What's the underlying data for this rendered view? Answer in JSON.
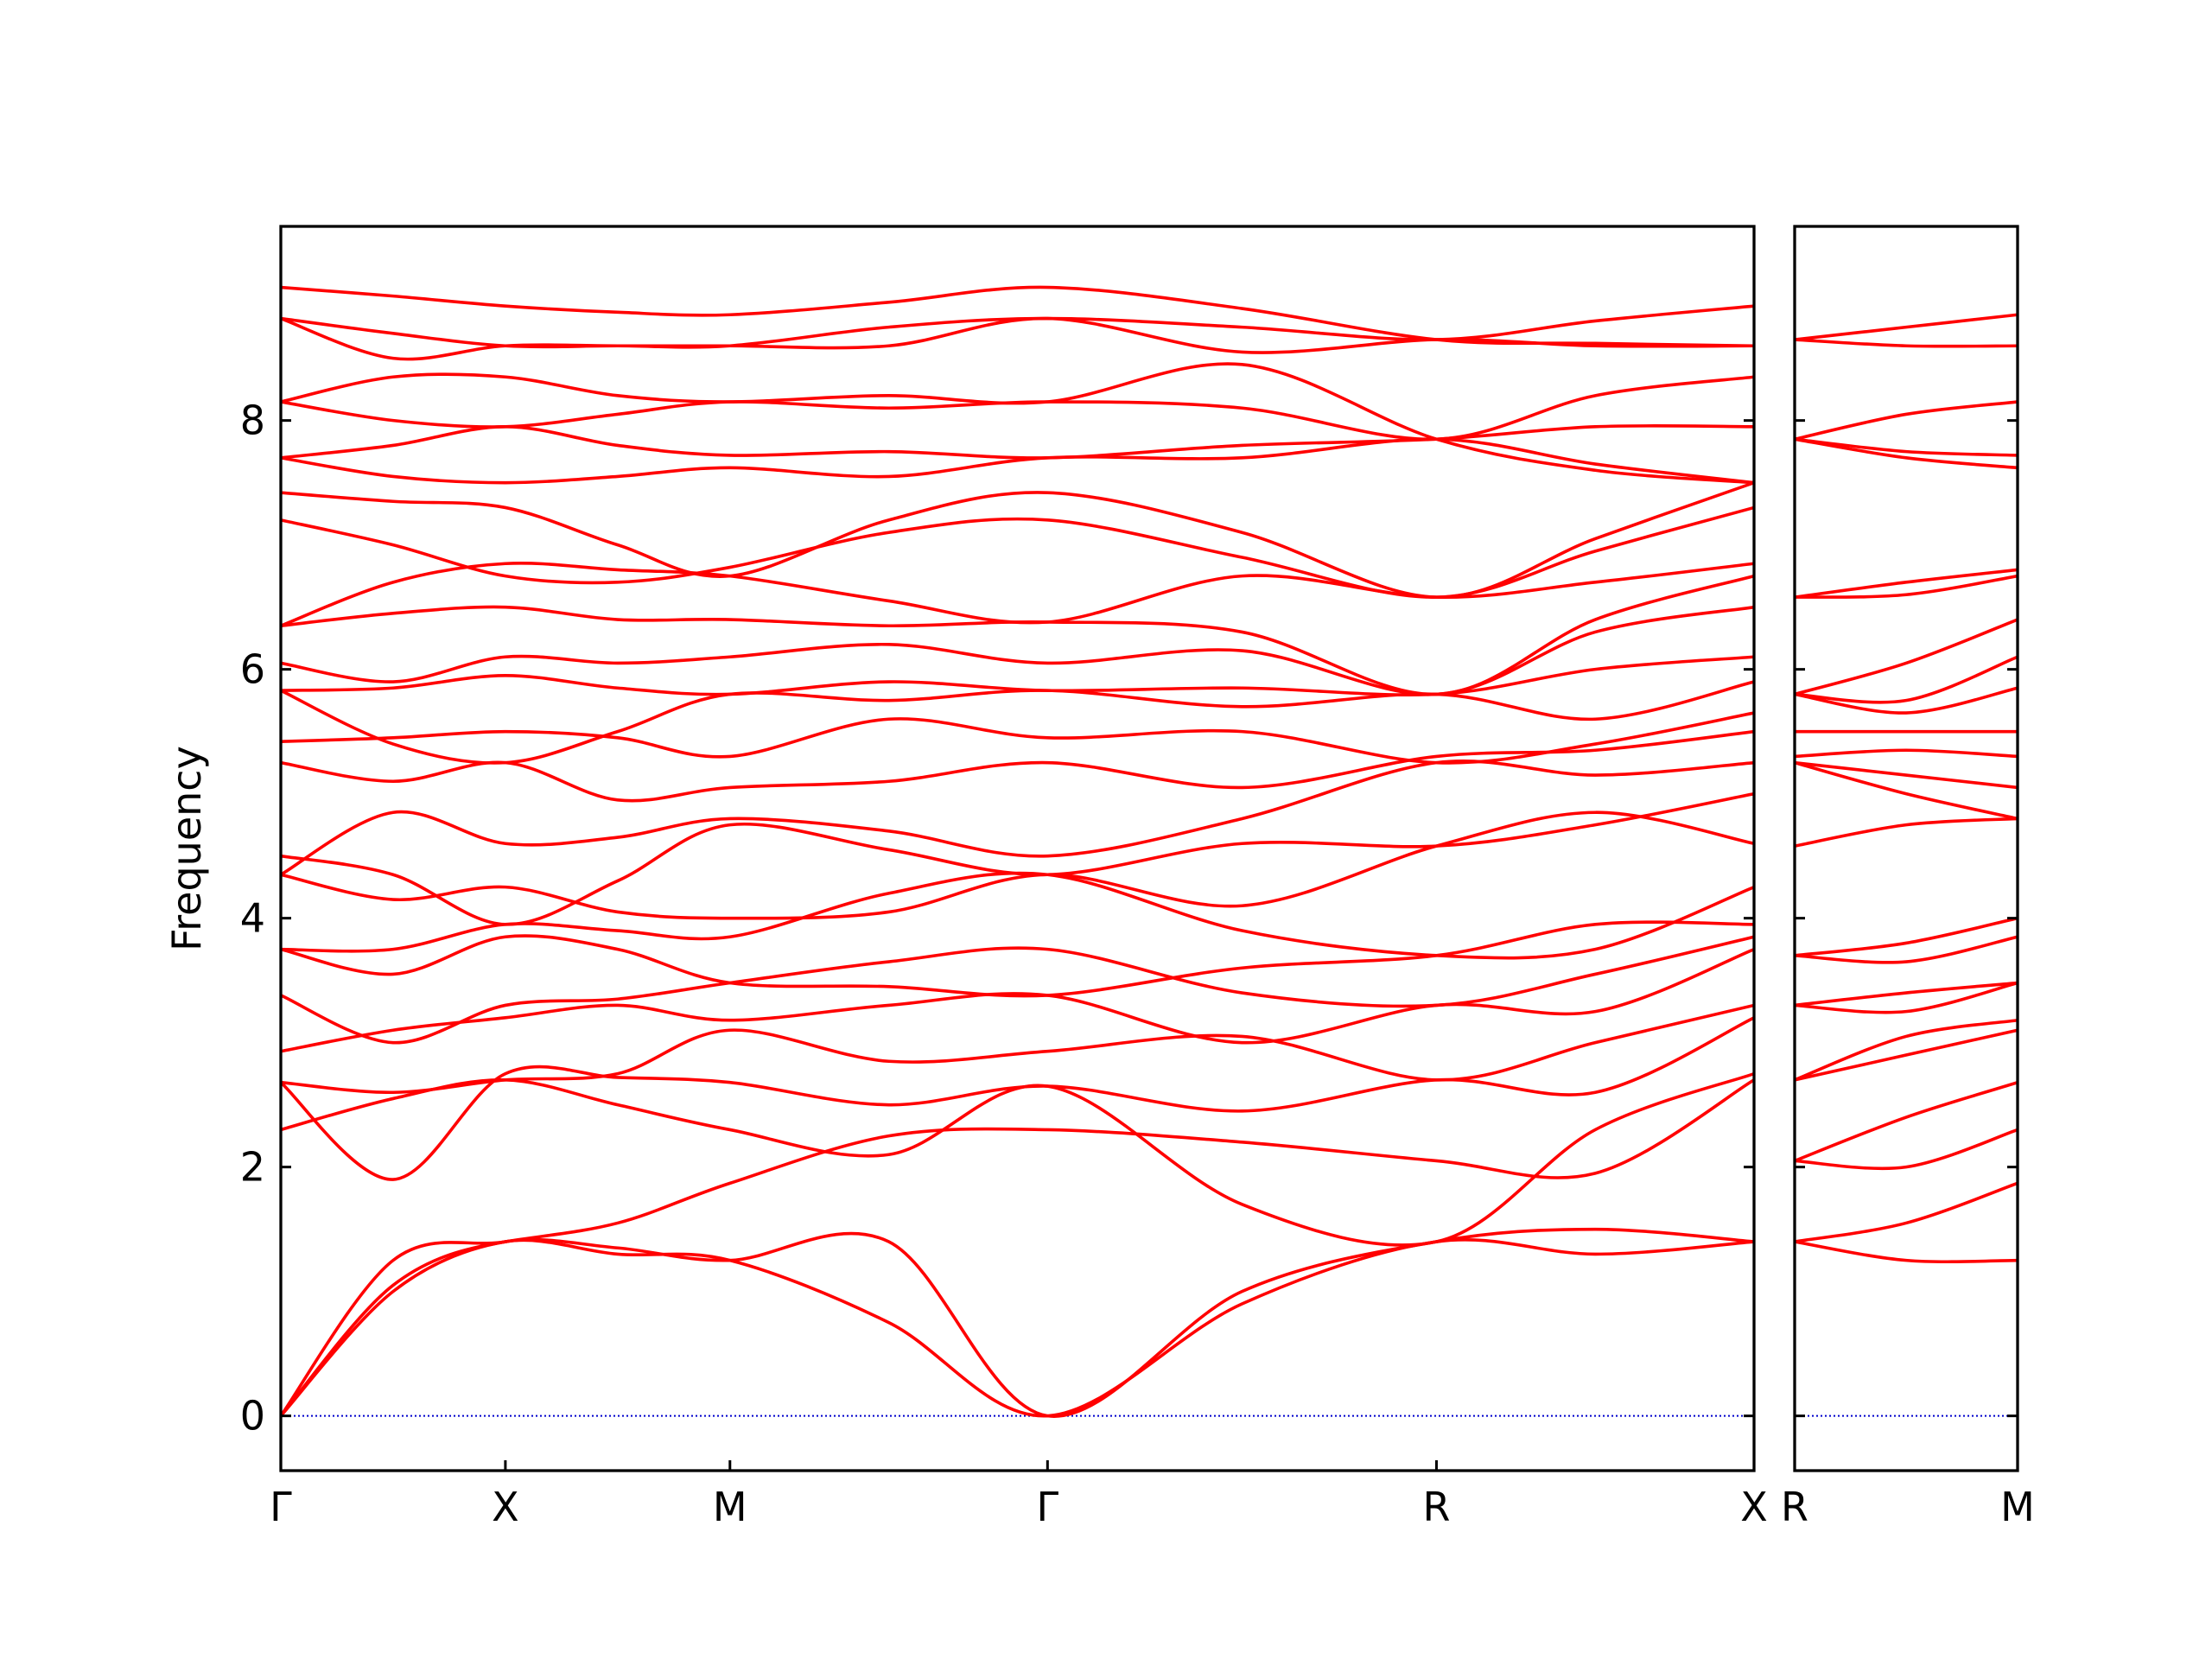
{
  "chart_data": [
    {
      "type": "line",
      "ylabel": "Frequency",
      "color": "#ff0000",
      "hline": 0,
      "hline_color": "#0000cc",
      "x": [
        0,
        0.25,
        0.5,
        0.75,
        1.0,
        1.3536,
        1.7071,
        2.1401,
        2.5731,
        2.9267,
        3.2802
      ],
      "xlim": [
        0,
        3.2802
      ],
      "xticks": [
        {
          "value": 0,
          "label": "Γ"
        },
        {
          "value": 0.5,
          "label": "X"
        },
        {
          "value": 1.0,
          "label": "M"
        },
        {
          "value": 1.7071,
          "label": "Γ"
        },
        {
          "value": 2.5731,
          "label": "R"
        },
        {
          "value": 3.2802,
          "label": "X"
        }
      ],
      "ylim": [
        -0.44,
        9.56
      ],
      "yticks": [
        0,
        2,
        4,
        6,
        8
      ],
      "series": [
        {
          "values": [
            0,
            1.0,
            1.4,
            1.3,
            1.25,
            0.75,
            0,
            0.9,
            1.4,
            1.3,
            1.4
          ]
        },
        {
          "values": [
            0,
            1.05,
            1.4,
            1.35,
            1.25,
            1.4,
            0,
            1.0,
            1.4,
            1.5,
            1.4
          ]
        },
        {
          "values": [
            0,
            1.25,
            1.4,
            1.55,
            1.87,
            2.25,
            2.3,
            2.2,
            2.05,
            1.95,
            2.7
          ]
        },
        {
          "values": [
            2.3,
            2.55,
            2.7,
            2.5,
            2.3,
            2.1,
            2.65,
            1.7,
            1.4,
            2.3,
            2.75
          ]
        },
        {
          "values": [
            2.68,
            1.9,
            2.75,
            2.72,
            2.68,
            2.5,
            2.65,
            2.45,
            2.7,
            2.6,
            3.2
          ]
        },
        {
          "values": [
            2.68,
            2.6,
            2.7,
            2.75,
            3.1,
            2.85,
            2.93,
            3.05,
            2.7,
            3.0,
            3.3
          ]
        },
        {
          "values": [
            2.93,
            3.1,
            3.2,
            3.3,
            3.18,
            3.3,
            3.38,
            3.0,
            3.3,
            3.25,
            3.75
          ]
        },
        {
          "values": [
            3.38,
            3.0,
            3.3,
            3.35,
            3.48,
            3.65,
            3.75,
            3.4,
            3.3,
            3.55,
            3.85
          ]
        },
        {
          "values": [
            3.75,
            3.55,
            3.85,
            3.75,
            3.48,
            3.45,
            3.38,
            3.6,
            3.7,
            3.95,
            3.95
          ]
        },
        {
          "values": [
            3.75,
            3.75,
            3.95,
            3.9,
            3.85,
            4.2,
            4.35,
            3.9,
            3.7,
            3.75,
            4.25
          ]
        },
        {
          "values": [
            4.35,
            4.15,
            4.25,
            4.05,
            4.0,
            4.05,
            4.35,
            4.1,
            4.58,
            4.85,
            4.6
          ]
        },
        {
          "values": [
            4.5,
            4.35,
            3.95,
            4.3,
            4.75,
            4.55,
            4.35,
            4.6,
            4.58,
            4.75,
            5.0
          ]
        },
        {
          "values": [
            4.35,
            4.85,
            4.6,
            4.65,
            4.8,
            4.7,
            4.5,
            4.8,
            5.25,
            5.15,
            5.25
          ]
        },
        {
          "values": [
            5.25,
            5.1,
            5.25,
            4.95,
            5.05,
            5.1,
            5.25,
            5.05,
            5.3,
            5.35,
            5.5
          ]
        },
        {
          "values": [
            5.42,
            5.45,
            5.5,
            5.45,
            5.3,
            5.6,
            5.45,
            5.5,
            5.25,
            5.4,
            5.65
          ]
        },
        {
          "values": [
            5.83,
            5.4,
            5.25,
            5.5,
            5.8,
            5.75,
            5.83,
            5.7,
            5.8,
            5.6,
            5.9
          ]
        },
        {
          "values": [
            5.83,
            5.85,
            5.95,
            5.85,
            5.8,
            5.9,
            5.83,
            5.85,
            5.8,
            6.0,
            6.1
          ]
        },
        {
          "values": [
            6.05,
            5.9,
            6.1,
            6.05,
            6.1,
            6.2,
            6.05,
            6.15,
            5.8,
            6.3,
            6.5
          ]
        },
        {
          "values": [
            6.35,
            6.45,
            6.5,
            6.4,
            6.4,
            6.35,
            6.38,
            6.3,
            5.8,
            6.4,
            6.75
          ]
        },
        {
          "values": [
            6.35,
            6.7,
            6.85,
            6.8,
            6.75,
            6.55,
            6.38,
            6.75,
            6.58,
            6.7,
            6.85
          ]
        },
        {
          "values": [
            7.2,
            7.0,
            6.75,
            6.7,
            6.82,
            7.1,
            7.2,
            6.9,
            6.58,
            6.95,
            7.3
          ]
        },
        {
          "values": [
            7.42,
            7.35,
            7.3,
            7.0,
            6.75,
            7.2,
            7.42,
            7.1,
            6.58,
            7.05,
            7.5
          ]
        },
        {
          "values": [
            7.7,
            7.55,
            7.5,
            7.55,
            7.62,
            7.55,
            7.7,
            7.7,
            7.85,
            7.65,
            7.5
          ]
        },
        {
          "values": [
            7.7,
            7.8,
            7.95,
            7.8,
            7.72,
            7.75,
            7.7,
            7.8,
            7.85,
            7.95,
            7.95
          ]
        },
        {
          "values": [
            8.15,
            8.0,
            7.95,
            8.05,
            8.15,
            8.1,
            8.15,
            8.1,
            7.85,
            8.2,
            8.35
          ]
        },
        {
          "values": [
            8.15,
            8.35,
            8.35,
            8.2,
            8.15,
            8.2,
            8.15,
            8.45,
            7.85,
            7.6,
            7.5
          ]
        },
        {
          "values": [
            8.82,
            8.7,
            8.6,
            8.6,
            8.6,
            8.6,
            8.82,
            8.55,
            8.65,
            8.6,
            8.6
          ]
        },
        {
          "values": [
            8.82,
            8.5,
            8.6,
            8.6,
            8.6,
            8.75,
            8.82,
            8.75,
            8.65,
            8.8,
            8.92
          ]
        },
        {
          "values": [
            9.07,
            9.0,
            8.92,
            8.87,
            8.85,
            8.95,
            9.07,
            8.9,
            8.65,
            8.62,
            8.6
          ]
        }
      ]
    },
    {
      "type": "line",
      "color": "#ff0000",
      "hline": 0,
      "hline_color": "#0000cc",
      "x": [
        0,
        0.25,
        0.5
      ],
      "xlim": [
        0,
        0.5
      ],
      "xticks": [
        {
          "value": 0,
          "label": "R"
        },
        {
          "value": 0.5,
          "label": "M"
        }
      ],
      "ylim": [
        -0.44,
        9.56
      ],
      "yticks": [
        0,
        2,
        4,
        6,
        8
      ],
      "series": [
        {
          "values": [
            1.4,
            1.25,
            1.25
          ]
        },
        {
          "values": [
            1.4,
            1.55,
            1.87
          ]
        },
        {
          "values": [
            2.05,
            2.0,
            2.3
          ]
        },
        {
          "values": [
            2.05,
            2.4,
            2.68
          ]
        },
        {
          "values": [
            2.7,
            2.9,
            3.1
          ]
        },
        {
          "values": [
            2.7,
            3.05,
            3.18
          ]
        },
        {
          "values": [
            3.3,
            3.25,
            3.48
          ]
        },
        {
          "values": [
            3.3,
            3.4,
            3.48
          ]
        },
        {
          "values": [
            3.7,
            3.65,
            3.85
          ]
        },
        {
          "values": [
            3.7,
            3.8,
            4.0
          ]
        },
        {
          "values": [
            4.58,
            4.75,
            4.8
          ]
        },
        {
          "values": [
            5.25,
            5.0,
            4.8
          ]
        },
        {
          "values": [
            5.25,
            5.15,
            5.05
          ]
        },
        {
          "values": [
            5.3,
            5.35,
            5.3
          ]
        },
        {
          "values": [
            5.5,
            5.5,
            5.5
          ]
        },
        {
          "values": [
            5.8,
            5.65,
            5.85
          ]
        },
        {
          "values": [
            5.8,
            5.75,
            6.1
          ]
        },
        {
          "values": [
            5.8,
            6.05,
            6.4
          ]
        },
        {
          "values": [
            6.58,
            6.6,
            6.75
          ]
        },
        {
          "values": [
            6.58,
            6.7,
            6.8
          ]
        },
        {
          "values": [
            7.85,
            7.7,
            7.62
          ]
        },
        {
          "values": [
            7.85,
            7.75,
            7.72
          ]
        },
        {
          "values": [
            7.85,
            8.05,
            8.15
          ]
        },
        {
          "values": [
            8.65,
            8.6,
            8.6
          ]
        },
        {
          "values": [
            8.65,
            8.75,
            8.85
          ]
        }
      ]
    }
  ]
}
